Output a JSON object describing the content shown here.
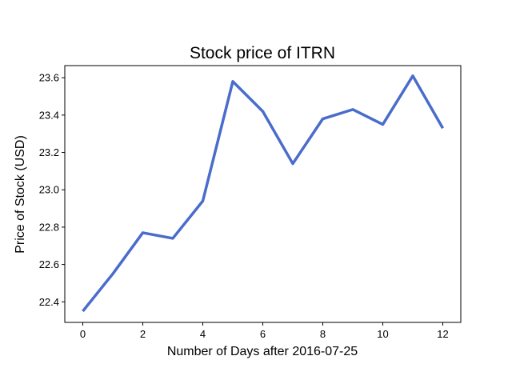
{
  "chart_data": {
    "type": "line",
    "title": "Stock price of ITRN",
    "xlabel": "Number of Days after 2016-07-25",
    "ylabel": "Price of Stock (USD)",
    "xlim": [
      -0.6,
      12.6
    ],
    "ylim": [
      22.29,
      23.665
    ],
    "x_ticks": [
      0,
      2,
      4,
      6,
      8,
      10,
      12
    ],
    "y_ticks": [
      22.4,
      22.6,
      22.8,
      23.0,
      23.2,
      23.4,
      23.6
    ],
    "grid": false,
    "series": [
      {
        "color": "#4a6ccb",
        "x": [
          0,
          1,
          2,
          3,
          4,
          5,
          6,
          7,
          8,
          9,
          10,
          11,
          12
        ],
        "y": [
          22.35,
          22.55,
          22.77,
          22.74,
          22.94,
          23.58,
          23.42,
          23.14,
          23.38,
          23.43,
          23.35,
          23.61,
          23.33
        ]
      }
    ]
  }
}
